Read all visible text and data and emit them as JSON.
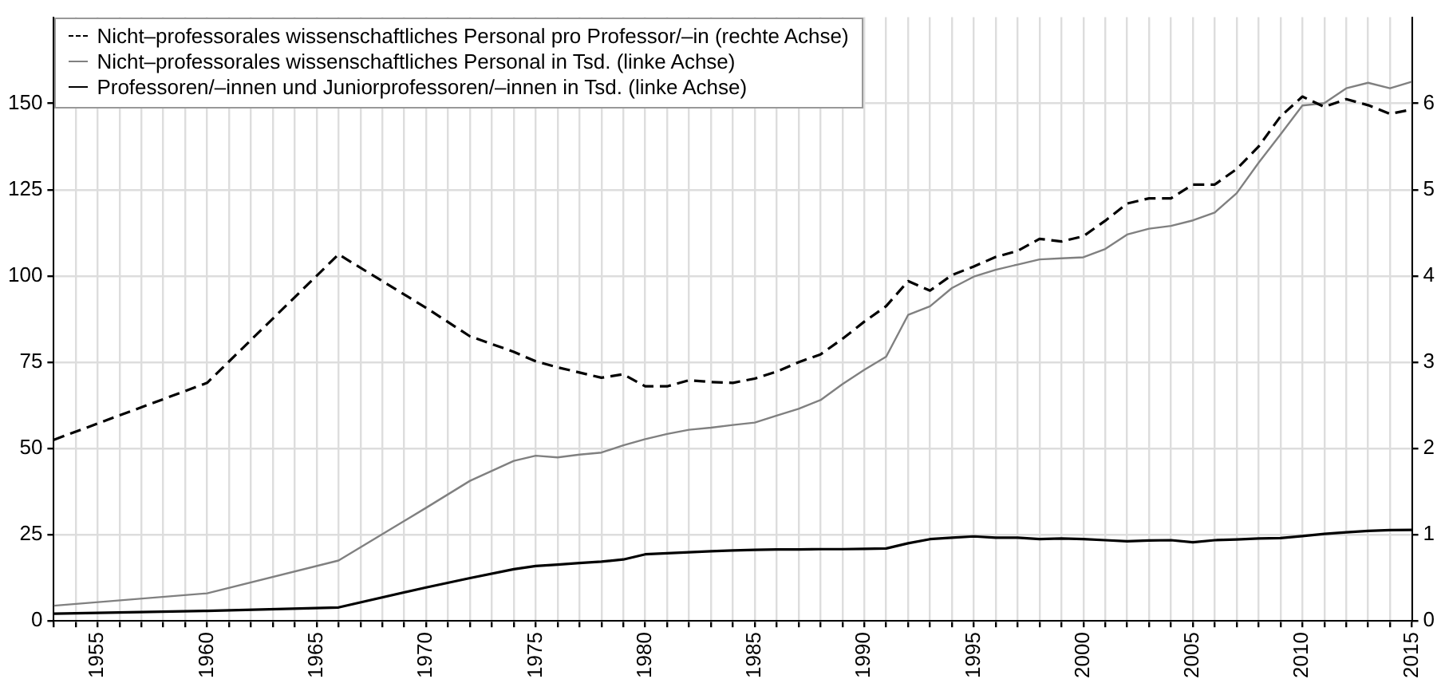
{
  "chart_data": {
    "type": "line",
    "x": [
      1953,
      1960,
      1966,
      1970,
      1972,
      1974,
      1975,
      1976,
      1977,
      1978,
      1979,
      1980,
      1981,
      1982,
      1983,
      1984,
      1985,
      1986,
      1987,
      1988,
      1989,
      1990,
      1991,
      1992,
      1993,
      1994,
      1995,
      1996,
      1997,
      1998,
      1999,
      2000,
      2001,
      2002,
      2003,
      2004,
      2005,
      2006,
      2007,
      2008,
      2009,
      2010,
      2011,
      2012,
      2013,
      2014,
      2015
    ],
    "series": [
      {
        "name": "Nicht–professorales wissenschaftliches Personal pro Professor/–in (rechte Achse)",
        "color": "#000000",
        "axis": "y2",
        "line_style": "dashed",
        "values": [
          2.1,
          2.76,
          4.25,
          3.63,
          3.3,
          3.12,
          3.01,
          2.94,
          2.88,
          2.82,
          2.86,
          2.72,
          2.72,
          2.79,
          2.77,
          2.76,
          2.81,
          2.89,
          3.0,
          3.09,
          3.27,
          3.47,
          3.65,
          3.94,
          3.83,
          4.01,
          4.11,
          4.22,
          4.29,
          4.43,
          4.4,
          4.46,
          4.64,
          4.84,
          4.9,
          4.9,
          5.06,
          5.06,
          5.24,
          5.5,
          5.85,
          6.08,
          5.96,
          6.05,
          5.98,
          5.88,
          5.93
        ]
      },
      {
        "name": "Nicht–professorales wissenschaftliches Personal in Tsd. (linke Achse)",
        "color": "#808080",
        "line_style": "solid",
        "values": [
          4.4,
          8.0,
          17.5,
          32.8,
          40.6,
          46.4,
          47.9,
          47.4,
          48.2,
          48.8,
          50.9,
          52.7,
          54.2,
          55.4,
          56.0,
          56.8,
          57.5,
          59.5,
          61.5,
          64,
          68.6,
          72.8,
          76.6,
          88.7,
          91.2,
          96.5,
          99.8,
          101.8,
          103.3,
          104.8,
          105.1,
          105.4,
          107.8,
          112,
          113.7,
          114.5,
          116.1,
          118.4,
          124,
          132.8,
          141,
          149.4,
          150.1,
          154.4,
          156,
          154.4,
          156.3
        ]
      },
      {
        "name": "Professoren/–innen und Juniorprofessoren/–innen in Tsd. (linke Achse)",
        "color": "#000000",
        "line_style": "solid",
        "values": [
          2.1,
          2.9,
          3.9,
          9.7,
          12.4,
          15.0,
          15.9,
          16.3,
          16.8,
          17.2,
          17.8,
          19.3,
          19.6,
          19.9,
          20.2,
          20.4,
          20.6,
          20.7,
          20.7,
          20.8,
          20.8,
          20.9,
          21.0,
          22.5,
          23.7,
          24.1,
          24.5,
          24.1,
          24.1,
          23.7,
          23.9,
          23.7,
          23.4,
          23.1,
          23.3,
          23.4,
          22.8,
          23.4,
          23.6,
          23.9,
          24.0,
          24.6,
          25.2,
          25.7,
          26.1,
          26.3,
          26.4
        ]
      }
    ],
    "xlim": [
      1953,
      2015
    ],
    "xticks": [
      {
        "value": 1953,
        "label": null
      },
      {
        "value": 1954,
        "label": null
      },
      1955,
      {
        "value": 1956,
        "label": null
      },
      {
        "value": 1957,
        "label": null
      },
      {
        "value": 1958,
        "label": null
      },
      {
        "value": 1959,
        "label": null
      },
      1960,
      {
        "value": 1961,
        "label": null
      },
      {
        "value": 1962,
        "label": null
      },
      {
        "value": 1963,
        "label": null
      },
      {
        "value": 1964,
        "label": null
      },
      1965,
      {
        "value": 1966,
        "label": null
      },
      {
        "value": 1967,
        "label": null
      },
      {
        "value": 1968,
        "label": null
      },
      {
        "value": 1969,
        "label": null
      },
      1970,
      {
        "value": 1971,
        "label": null
      },
      {
        "value": 1972,
        "label": null
      },
      {
        "value": 1973,
        "label": null
      },
      {
        "value": 1974,
        "label": null
      },
      1975,
      {
        "value": 1976,
        "label": null
      },
      {
        "value": 1977,
        "label": null
      },
      {
        "value": 1978,
        "label": null
      },
      {
        "value": 1979,
        "label": null
      },
      1980,
      {
        "value": 1981,
        "label": null
      },
      {
        "value": 1982,
        "label": null
      },
      {
        "value": 1983,
        "label": null
      },
      {
        "value": 1984,
        "label": null
      },
      1985,
      {
        "value": 1986,
        "label": null
      },
      {
        "value": 1987,
        "label": null
      },
      {
        "value": 1988,
        "label": null
      },
      {
        "value": 1989,
        "label": null
      },
      1990,
      {
        "value": 1991,
        "label": null
      },
      {
        "value": 1992,
        "label": null
      },
      {
        "value": 1993,
        "label": null
      },
      {
        "value": 1994,
        "label": null
      },
      1995,
      {
        "value": 1996,
        "label": null
      },
      {
        "value": 1997,
        "label": null
      },
      {
        "value": 1998,
        "label": null
      },
      {
        "value": 1999,
        "label": null
      },
      2000,
      {
        "value": 2001,
        "label": null
      },
      {
        "value": 2002,
        "label": null
      },
      {
        "value": 2003,
        "label": null
      },
      {
        "value": 2004,
        "label": null
      },
      2005,
      {
        "value": 2006,
        "label": null
      },
      {
        "value": 2007,
        "label": null
      },
      {
        "value": 2008,
        "label": null
      },
      {
        "value": 2009,
        "label": null
      },
      2010,
      {
        "value": 2011,
        "label": null
      },
      {
        "value": 2012,
        "label": null
      },
      {
        "value": 2013,
        "label": null
      },
      {
        "value": 2014,
        "label": null
      },
      2015
    ],
    "ylim": [
      0,
      175
    ],
    "yticks": [
      0,
      25,
      50,
      75,
      100,
      125,
      150
    ],
    "y2lim": [
      0,
      7
    ],
    "y2ticks": [
      0,
      1,
      2,
      3,
      4,
      5,
      6
    ],
    "grid": true,
    "legend": "top left",
    "marker": "none"
  }
}
